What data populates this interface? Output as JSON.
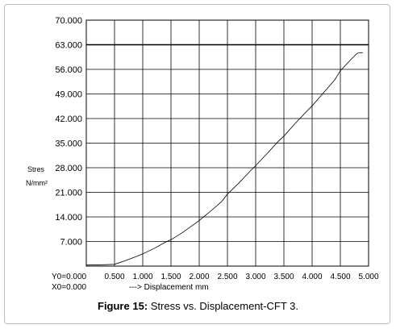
{
  "chart_data": {
    "type": "line",
    "title": "",
    "ylabel_line1": "Stres",
    "ylabel_line2": "N/mm²",
    "xlabel": "---> Displacement mm",
    "y_ticks": [
      "7.000",
      "14.000",
      "21.000",
      "28.000",
      "35.000",
      "42.000",
      "49.000",
      "56.000",
      "63.000",
      "70.000"
    ],
    "x_ticks": [
      "0.500",
      "1.000",
      "1.500",
      "2.000",
      "2.500",
      "3.000",
      "3.500",
      "4.000",
      "4.500",
      "5.000"
    ],
    "origin_y_label": "Y0=0.000",
    "origin_x_label": "X0=0.000",
    "xlim": [
      0,
      5.0
    ],
    "ylim": [
      0,
      70.0
    ],
    "reference_line_y": 63.0,
    "grid": true,
    "series": [
      {
        "x": [
          0.0,
          0.3,
          0.5,
          0.7,
          0.9,
          1.0,
          1.2,
          1.4,
          1.5,
          1.7,
          1.9,
          2.0,
          2.2,
          2.4,
          2.5,
          2.7,
          2.9,
          3.0,
          3.2,
          3.4,
          3.5,
          3.7,
          3.9,
          4.0,
          4.2,
          4.4,
          4.5,
          4.7,
          4.8,
          4.9
        ],
        "y": [
          0.3,
          0.4,
          0.5,
          1.6,
          2.8,
          3.5,
          5.0,
          6.8,
          7.5,
          9.5,
          11.8,
          13.0,
          15.6,
          18.4,
          20.5,
          23.6,
          27.0,
          28.6,
          32.0,
          35.5,
          37.0,
          40.6,
          44.0,
          45.6,
          49.3,
          53.0,
          55.6,
          59.0,
          60.6,
          60.8
        ],
        "color": "#000000"
      }
    ]
  },
  "caption": {
    "figure_label": "Figure 15:",
    "text": " Stress vs. Displacement-CFT 3."
  }
}
